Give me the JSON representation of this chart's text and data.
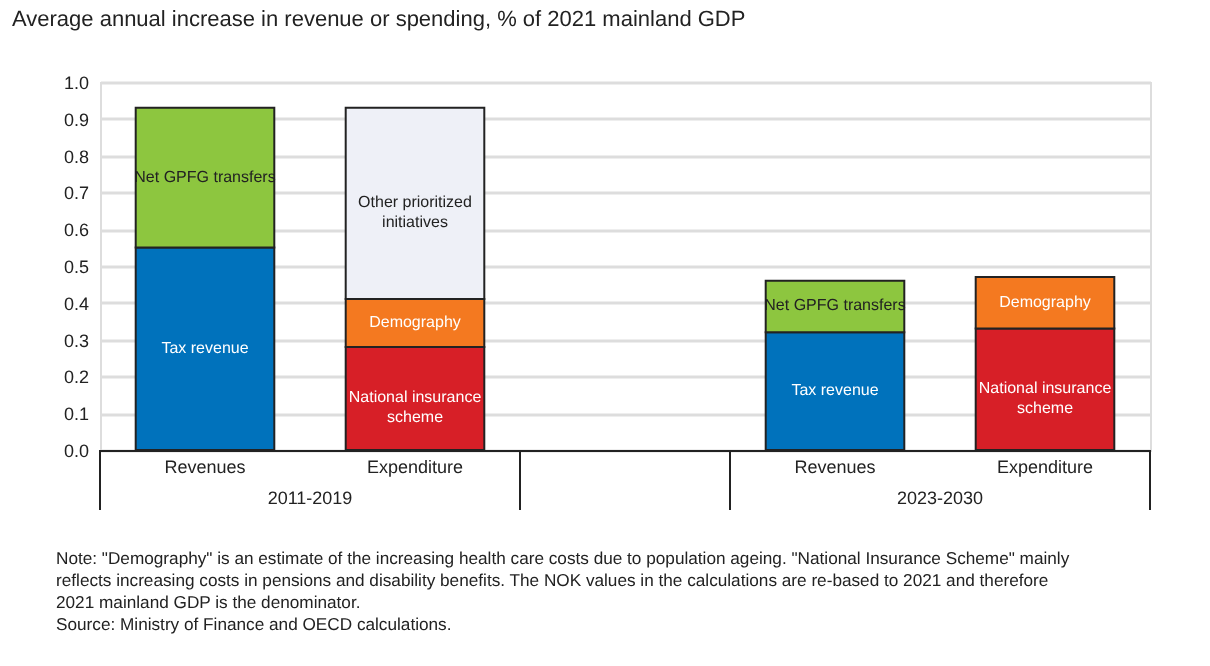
{
  "chart_data": {
    "type": "bar",
    "stacked": true,
    "title": "Average annual increase in revenue or spending, % of 2021 mainland GDP",
    "categories": [
      "Revenues",
      "Expenditure",
      null,
      "Revenues",
      "Expenditure"
    ],
    "series": [
      {
        "name": "Tax revenue",
        "color": "#0072bc",
        "values": [
          0.55,
          null,
          null,
          0.32,
          null
        ]
      },
      {
        "name": "Net GPFG transfers",
        "color": "#8dc63f",
        "values": [
          0.38,
          null,
          null,
          0.14,
          null
        ]
      },
      {
        "name": "National insurance scheme",
        "color": "#d71f27",
        "values": [
          null,
          0.28,
          null,
          null,
          0.33
        ]
      },
      {
        "name": "Demography",
        "color": "#f47920",
        "values": [
          null,
          0.13,
          null,
          null,
          0.14
        ]
      },
      {
        "name": "Other prioritized initiatives",
        "color": "#eef0f7",
        "values": [
          null,
          0.52,
          null,
          null,
          null
        ]
      }
    ],
    "ylim": [
      0,
      1.0
    ],
    "yticks": [
      {
        "value": 0,
        "label": "0.0"
      },
      {
        "value": 0.1,
        "label": "0.1"
      },
      {
        "value": 0.2,
        "label": "0.2"
      },
      {
        "value": 0.3,
        "label": "0.3"
      },
      {
        "value": 0.4,
        "label": "0.4"
      },
      {
        "value": 0.5,
        "label": "0.5"
      },
      {
        "value": 0.6,
        "label": "0.6"
      },
      {
        "value": 0.7,
        "label": "0.7"
      },
      {
        "value": 0.8,
        "label": "0.8"
      },
      {
        "value": 0.9,
        "label": "0.9"
      },
      {
        "value": 1.0,
        "label": "1.0"
      }
    ],
    "grid": "y",
    "annotations": [
      "2011-2019",
      "2023-2030",
      "Note: \"Demography\" is an estimate of the increasing health care costs due to population ageing. \"National Insurance Scheme\" mainly reflects increasing costs in pensions and disability benefits. The NOK values in the calculations are re-based to 2021 and therefore 2021 mainland GDP is the denominator.",
      "Source: Ministry of Finance and OECD calculations."
    ]
  }
}
